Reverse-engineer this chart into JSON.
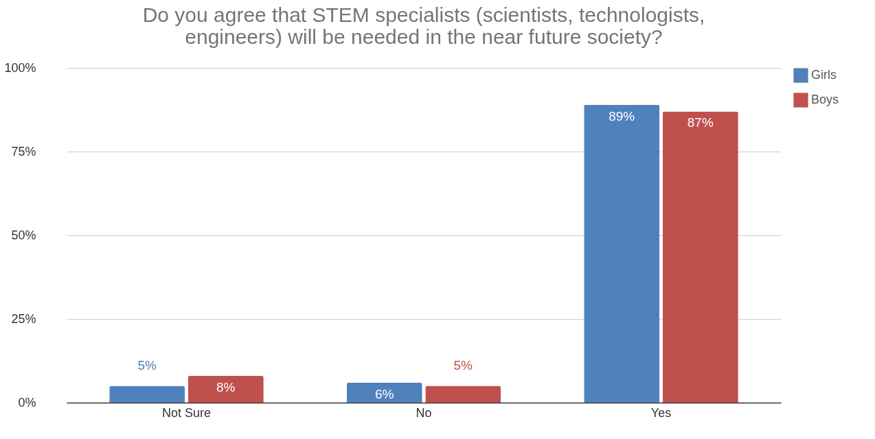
{
  "chart_data": {
    "type": "bar",
    "title": [
      "Do you agree that STEM specialists (scientists, technologists,",
      "engineers) will be needed in the near future society?"
    ],
    "categories": [
      "Not Sure",
      "No",
      "Yes"
    ],
    "series": [
      {
        "name": "Girls",
        "color": "#4f81bd",
        "values": [
          5,
          6,
          89
        ],
        "value_labels": [
          "5%",
          "6%",
          "89%"
        ]
      },
      {
        "name": "Boys",
        "color": "#c0504d",
        "values": [
          8,
          5,
          87
        ],
        "value_labels": [
          "8%",
          "5%",
          "87%"
        ]
      }
    ],
    "ylim": [
      0,
      100
    ],
    "yticks": [
      {
        "value": 0,
        "label": "0%"
      },
      {
        "value": 25,
        "label": "25%"
      },
      {
        "value": 50,
        "label": "50%"
      },
      {
        "value": 75,
        "label": "75%"
      },
      {
        "value": 100,
        "label": "100%"
      }
    ],
    "grid": "y",
    "legend": "top right"
  }
}
